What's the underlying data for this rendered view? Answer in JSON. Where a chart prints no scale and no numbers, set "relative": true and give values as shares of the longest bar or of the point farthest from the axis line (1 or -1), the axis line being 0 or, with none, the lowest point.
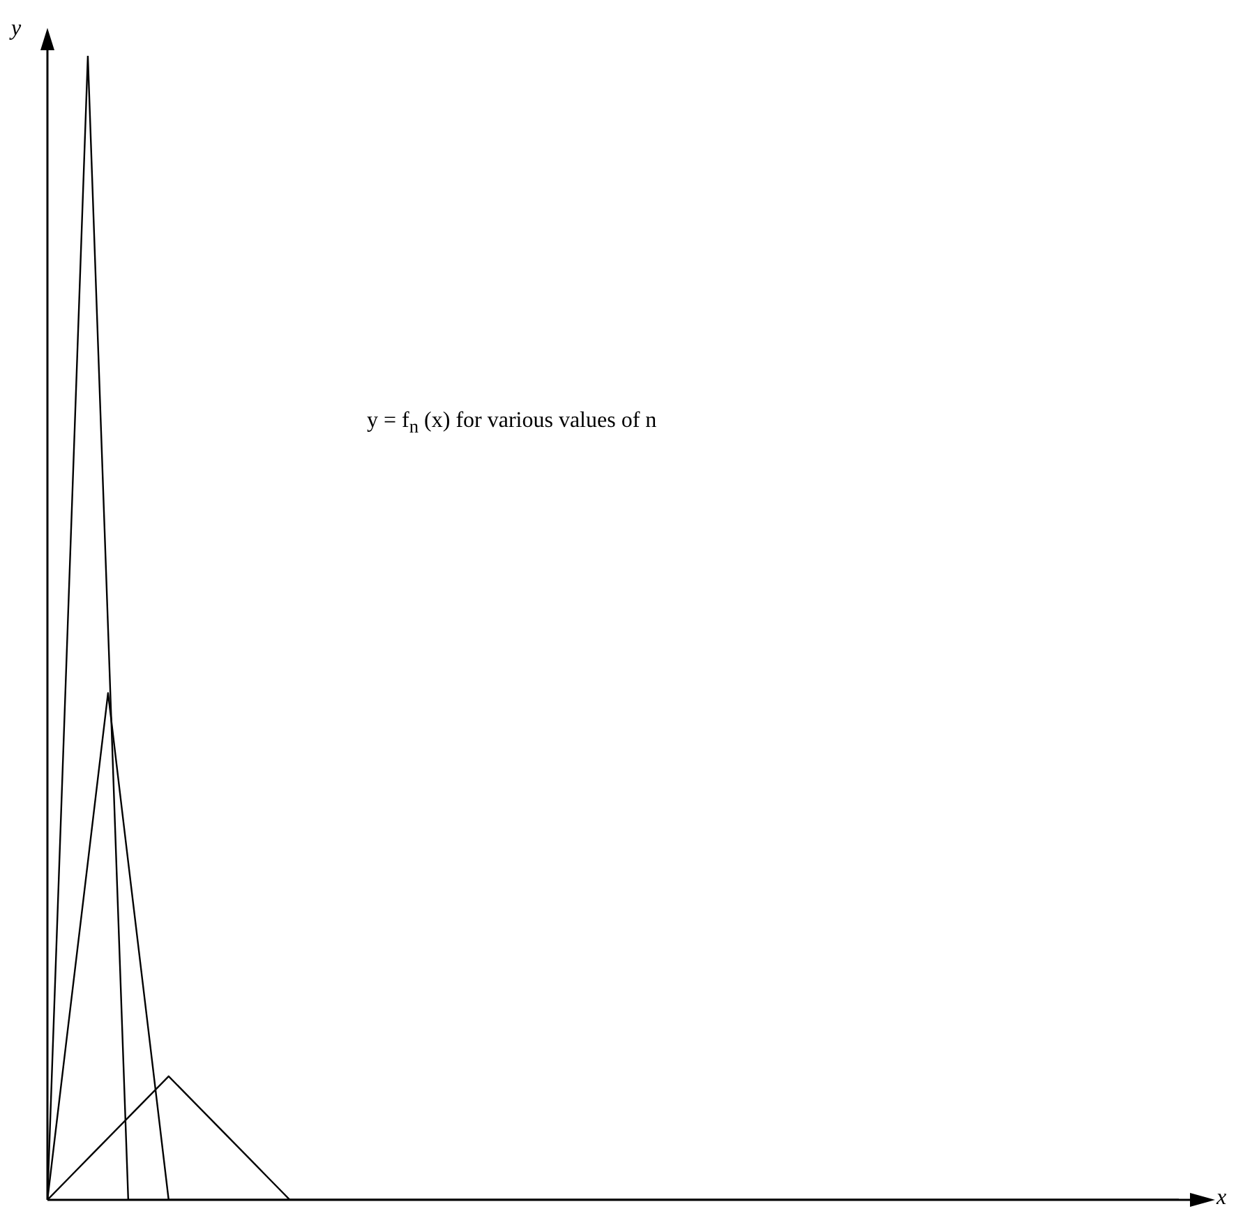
{
  "chart_data": {
    "type": "line",
    "relative": true,
    "xlabel": "x",
    "ylabel": "y",
    "annotations": [
      "y = f$_{n}$ (x) for various values of n"
    ],
    "grid": false,
    "legend": false,
    "marker": "none",
    "line_style": "solid",
    "categories": [
      null,
      null,
      null,
      null,
      null,
      null,
      null,
      null,
      null,
      null,
      null,
      null,
      null,
      null,
      null,
      null,
      null,
      null,
      null,
      null,
      null,
      null,
      null,
      null,
      null,
      null,
      null,
      null,
      null,
      null,
      null,
      null,
      null,
      null,
      null,
      null,
      null,
      null,
      null,
      null,
      null,
      null,
      null,
      null,
      null,
      null,
      null,
      null,
      null,
      null,
      null,
      null,
      null,
      null,
      null,
      null,
      null
    ],
    "series": [
      {
        "color": "#000000",
        "values": [
          0,
          0.5,
          1,
          0.5,
          0,
          0,
          0,
          0,
          0,
          0,
          0,
          0,
          0,
          0,
          0,
          0,
          0,
          0,
          0,
          0,
          0,
          0,
          0,
          0,
          0,
          0,
          0,
          0,
          0,
          0,
          0,
          0,
          0,
          0,
          0,
          0,
          0,
          0,
          0,
          0,
          0,
          0,
          0,
          0,
          0,
          0,
          0,
          0,
          0,
          0,
          0,
          0,
          0,
          0,
          0,
          0,
          0
        ]
      },
      {
        "color": "#000000",
        "values": [
          0,
          0.148,
          0.295,
          0.443,
          0.295,
          0.148,
          0,
          0,
          0,
          0,
          0,
          0,
          0,
          0,
          0,
          0,
          0,
          0,
          0,
          0,
          0,
          0,
          0,
          0,
          0,
          0,
          0,
          0,
          0,
          0,
          0,
          0,
          0,
          0,
          0,
          0,
          0,
          0,
          0,
          0,
          0,
          0,
          0,
          0,
          0,
          0,
          0,
          0,
          0,
          0,
          0,
          0,
          0,
          0,
          0,
          0,
          0
        ]
      },
      {
        "color": "#000000",
        "values": [
          0,
          0.018,
          0.036,
          0.054,
          0.072,
          0.09,
          0.108,
          0.09,
          0.072,
          0.054,
          0.036,
          0.018,
          0,
          0,
          0,
          0,
          0,
          0,
          0,
          0,
          0,
          0,
          0,
          0,
          0,
          0,
          0,
          0,
          0,
          0,
          0,
          0,
          0,
          0,
          0,
          0,
          0,
          0,
          0,
          0,
          0,
          0,
          0,
          0,
          0,
          0,
          0,
          0,
          0,
          0,
          0,
          0,
          0,
          0,
          0,
          0,
          0
        ]
      }
    ]
  }
}
